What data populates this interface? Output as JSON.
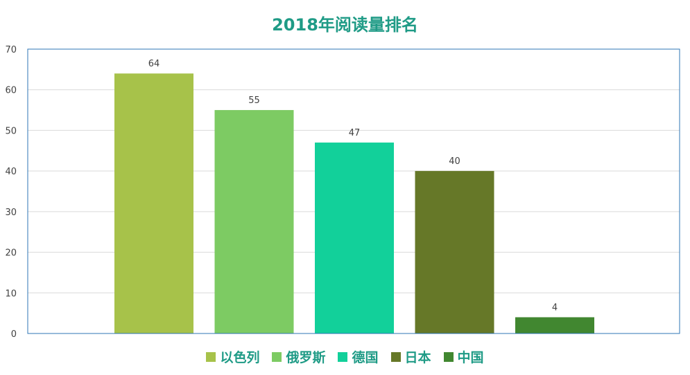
{
  "chart_data": {
    "type": "bar",
    "title": "2018年阅读量排名",
    "categories": [
      "以色列",
      "俄罗斯",
      "德国",
      "日本",
      "中国"
    ],
    "values": [
      64,
      55,
      47,
      40,
      4
    ],
    "colors": [
      "#a7c24a",
      "#7dcb63",
      "#12d09a",
      "#667828",
      "#418730"
    ],
    "ylim": [
      0,
      70
    ],
    "yticks": [
      0,
      10,
      20,
      30,
      40,
      50,
      60,
      70
    ],
    "grid": true,
    "legend_position": "bottom",
    "axis_color": "#2e75b6",
    "title_color": "#1f9b86"
  }
}
